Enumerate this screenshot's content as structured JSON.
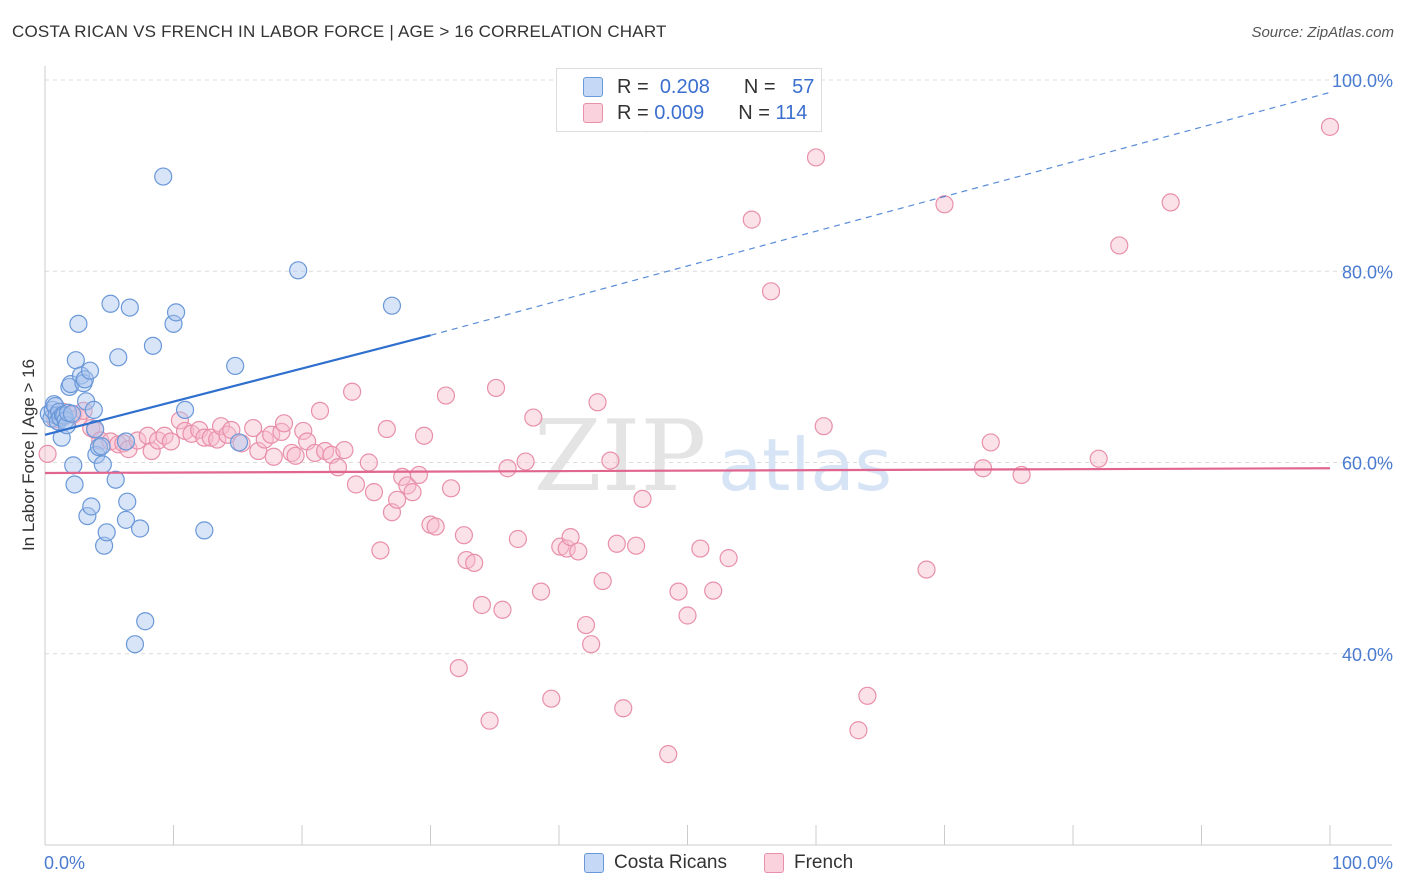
{
  "title": "COSTA RICAN VS FRENCH IN LABOR FORCE | AGE > 16 CORRELATION CHART",
  "source": "Source: ZipAtlas.com",
  "watermark": {
    "zip": "ZIP",
    "atlas": "atlas"
  },
  "legend": {
    "r_label": "R =",
    "n_label": "N =",
    "rows": [
      {
        "r": "0.208",
        "n": "57"
      },
      {
        "r": "0.009",
        "n": "114"
      }
    ]
  },
  "colors": {
    "blue_fill": "#a9c4ee",
    "blue_stroke": "#6a98d8",
    "blue_line": "#2f6fce",
    "pink_fill": "#f6bccd",
    "pink_stroke": "#e890aa",
    "pink_line": "#e0658f",
    "axis_text": "#4a7bd0",
    "grid": "#dcdcdc"
  },
  "chart_data": {
    "type": "scatter",
    "title": "COSTA RICAN VS FRENCH IN LABOR FORCE | AGE > 16 CORRELATION CHART",
    "xlabel": "",
    "ylabel": "In Labor Force | Age > 16",
    "xlim": [
      0,
      100
    ],
    "ylim": [
      20,
      100
    ],
    "x_tick_labels": [
      "0.0%",
      "100.0%"
    ],
    "y_ticks": [
      40,
      60,
      80,
      100
    ],
    "y_tick_labels": [
      "40.0%",
      "60.0%",
      "80.0%",
      "100.0%"
    ],
    "grid": true,
    "series": [
      {
        "name": "Costa Ricans",
        "r": 0.208,
        "n": 57,
        "trend": {
          "x0": 0,
          "y0": 62.9,
          "x1": 30,
          "y1": 73.3,
          "dashed_to_x": 100,
          "dashed_to_y": 98.7
        },
        "points": [
          [
            0.3,
            65.1
          ],
          [
            0.5,
            64.6
          ],
          [
            0.6,
            65.5
          ],
          [
            0.7,
            66.1
          ],
          [
            0.8,
            65.9
          ],
          [
            0.9,
            64.9
          ],
          [
            1.0,
            64.3
          ],
          [
            1.1,
            65.3
          ],
          [
            1.2,
            64.7
          ],
          [
            1.3,
            62.6
          ],
          [
            1.4,
            65.0
          ],
          [
            1.5,
            64.9
          ],
          [
            1.6,
            64.4
          ],
          [
            1.7,
            63.9
          ],
          [
            1.8,
            65.2
          ],
          [
            1.9,
            67.9
          ],
          [
            2.0,
            68.2
          ],
          [
            2.1,
            65.1
          ],
          [
            2.2,
            59.7
          ],
          [
            2.3,
            57.7
          ],
          [
            2.4,
            70.7
          ],
          [
            2.6,
            74.5
          ],
          [
            2.8,
            69.1
          ],
          [
            3.0,
            68.3
          ],
          [
            3.1,
            68.7
          ],
          [
            3.2,
            66.4
          ],
          [
            3.3,
            54.4
          ],
          [
            3.5,
            69.6
          ],
          [
            3.6,
            55.4
          ],
          [
            3.8,
            65.5
          ],
          [
            3.9,
            63.5
          ],
          [
            4.0,
            60.8
          ],
          [
            4.2,
            61.6
          ],
          [
            4.4,
            61.7
          ],
          [
            4.5,
            59.8
          ],
          [
            4.6,
            51.3
          ],
          [
            4.8,
            52.7
          ],
          [
            5.1,
            76.6
          ],
          [
            5.5,
            58.2
          ],
          [
            5.7,
            71.0
          ],
          [
            6.3,
            62.2
          ],
          [
            6.3,
            54.0
          ],
          [
            6.4,
            55.9
          ],
          [
            6.6,
            76.2
          ],
          [
            7.4,
            53.1
          ],
          [
            7.8,
            43.4
          ],
          [
            7.0,
            41.0
          ],
          [
            8.4,
            72.2
          ],
          [
            9.2,
            89.9
          ],
          [
            10.0,
            74.5
          ],
          [
            10.2,
            75.7
          ],
          [
            10.9,
            65.5
          ],
          [
            12.4,
            52.9
          ],
          [
            14.8,
            70.1
          ],
          [
            15.1,
            62.1
          ],
          [
            19.7,
            80.1
          ],
          [
            27.0,
            76.4
          ]
        ]
      },
      {
        "name": "French",
        "r": 0.009,
        "n": 114,
        "trend": {
          "x0": 0,
          "y0": 58.9,
          "x1": 100,
          "y1": 59.4
        },
        "points": [
          [
            0.2,
            60.9
          ],
          [
            0.8,
            64.5
          ],
          [
            1.4,
            65.3
          ],
          [
            2.2,
            65.0
          ],
          [
            2.6,
            64.7
          ],
          [
            3.0,
            65.4
          ],
          [
            3.6,
            63.6
          ],
          [
            3.9,
            63.4
          ],
          [
            4.3,
            62.3
          ],
          [
            5.1,
            62.2
          ],
          [
            5.7,
            61.9
          ],
          [
            6.1,
            62.0
          ],
          [
            6.5,
            61.4
          ],
          [
            7.2,
            62.3
          ],
          [
            8.0,
            62.8
          ],
          [
            8.3,
            61.2
          ],
          [
            8.8,
            62.3
          ],
          [
            9.3,
            62.8
          ],
          [
            9.8,
            62.2
          ],
          [
            10.5,
            64.4
          ],
          [
            10.9,
            63.3
          ],
          [
            11.4,
            63.0
          ],
          [
            12.0,
            63.4
          ],
          [
            12.4,
            62.6
          ],
          [
            12.9,
            62.6
          ],
          [
            13.4,
            62.4
          ],
          [
            13.7,
            63.8
          ],
          [
            14.2,
            62.9
          ],
          [
            14.5,
            63.4
          ],
          [
            15.3,
            62.0
          ],
          [
            16.2,
            63.6
          ],
          [
            16.6,
            61.2
          ],
          [
            17.1,
            62.4
          ],
          [
            17.6,
            62.9
          ],
          [
            17.8,
            60.6
          ],
          [
            18.4,
            63.2
          ],
          [
            18.6,
            64.1
          ],
          [
            19.2,
            61.0
          ],
          [
            19.5,
            60.7
          ],
          [
            20.1,
            63.3
          ],
          [
            20.4,
            62.2
          ],
          [
            21.0,
            61.0
          ],
          [
            21.4,
            65.4
          ],
          [
            21.8,
            61.2
          ],
          [
            22.3,
            60.8
          ],
          [
            22.8,
            59.5
          ],
          [
            23.3,
            61.3
          ],
          [
            23.9,
            67.4
          ],
          [
            24.2,
            57.7
          ],
          [
            25.2,
            60.0
          ],
          [
            25.6,
            56.9
          ],
          [
            26.1,
            50.8
          ],
          [
            26.6,
            63.5
          ],
          [
            27.0,
            54.8
          ],
          [
            27.4,
            56.1
          ],
          [
            27.8,
            58.5
          ],
          [
            28.2,
            57.6
          ],
          [
            28.6,
            56.9
          ],
          [
            29.1,
            58.7
          ],
          [
            29.5,
            62.8
          ],
          [
            30.0,
            53.5
          ],
          [
            30.4,
            53.3
          ],
          [
            31.2,
            67.0
          ],
          [
            31.6,
            57.3
          ],
          [
            32.2,
            38.5
          ],
          [
            32.6,
            52.4
          ],
          [
            32.8,
            49.8
          ],
          [
            33.4,
            49.5
          ],
          [
            34.0,
            45.1
          ],
          [
            34.6,
            33.0
          ],
          [
            35.1,
            67.8
          ],
          [
            35.6,
            44.6
          ],
          [
            36.0,
            59.4
          ],
          [
            36.8,
            52.0
          ],
          [
            37.4,
            60.1
          ],
          [
            38.0,
            64.7
          ],
          [
            38.6,
            46.5
          ],
          [
            39.4,
            35.3
          ],
          [
            40.1,
            51.2
          ],
          [
            40.6,
            51.0
          ],
          [
            40.9,
            52.2
          ],
          [
            41.5,
            50.7
          ],
          [
            42.1,
            43.0
          ],
          [
            42.5,
            41.0
          ],
          [
            43.0,
            66.3
          ],
          [
            43.4,
            47.6
          ],
          [
            44.0,
            60.2
          ],
          [
            44.5,
            51.5
          ],
          [
            45.0,
            34.3
          ],
          [
            46.0,
            51.3
          ],
          [
            46.5,
            56.2
          ],
          [
            46.8,
            95.5
          ],
          [
            48.5,
            29.5
          ],
          [
            49.3,
            46.5
          ],
          [
            50.0,
            44.0
          ],
          [
            51.0,
            51.0
          ],
          [
            52.0,
            46.6
          ],
          [
            53.2,
            50.0
          ],
          [
            55.0,
            85.4
          ],
          [
            56.5,
            77.9
          ],
          [
            60.0,
            91.9
          ],
          [
            60.6,
            63.8
          ],
          [
            63.3,
            32.0
          ],
          [
            64.0,
            35.6
          ],
          [
            68.6,
            48.8
          ],
          [
            70.0,
            87.0
          ],
          [
            73.0,
            59.4
          ],
          [
            73.6,
            62.1
          ],
          [
            76.0,
            58.7
          ],
          [
            82.0,
            60.4
          ],
          [
            83.6,
            82.7
          ],
          [
            87.6,
            87.2
          ],
          [
            100.0,
            95.1
          ],
          [
            1.5,
            64.8
          ]
        ]
      }
    ]
  }
}
